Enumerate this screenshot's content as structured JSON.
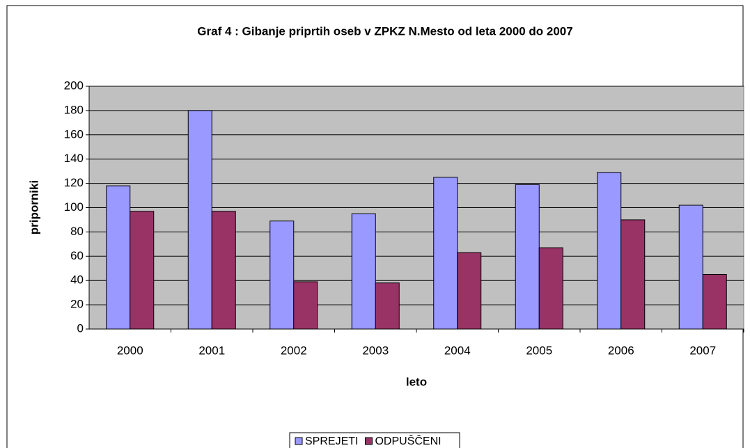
{
  "chart_data": {
    "type": "bar",
    "title": "Graf 4 : Gibanje priprtih oseb v ZPKZ N.Mesto od leta 2000 do 2007",
    "xlabel": "leto",
    "ylabel": "priporniki",
    "categories": [
      "2000",
      "2001",
      "2002",
      "2003",
      "2004",
      "2005",
      "2006",
      "2007"
    ],
    "series": [
      {
        "name": "SPREJETI",
        "color": "#9999ff",
        "values": [
          118,
          180,
          89,
          95,
          125,
          119,
          129,
          102
        ]
      },
      {
        "name": "ODPUŠČENI",
        "color": "#993366",
        "values": [
          97,
          97,
          39,
          38,
          63,
          67,
          90,
          45
        ]
      }
    ],
    "ylim": [
      0,
      200
    ],
    "yticks": [
      0,
      20,
      40,
      60,
      80,
      100,
      120,
      140,
      160,
      180,
      200
    ],
    "grid": true,
    "legend": "bottom"
  }
}
